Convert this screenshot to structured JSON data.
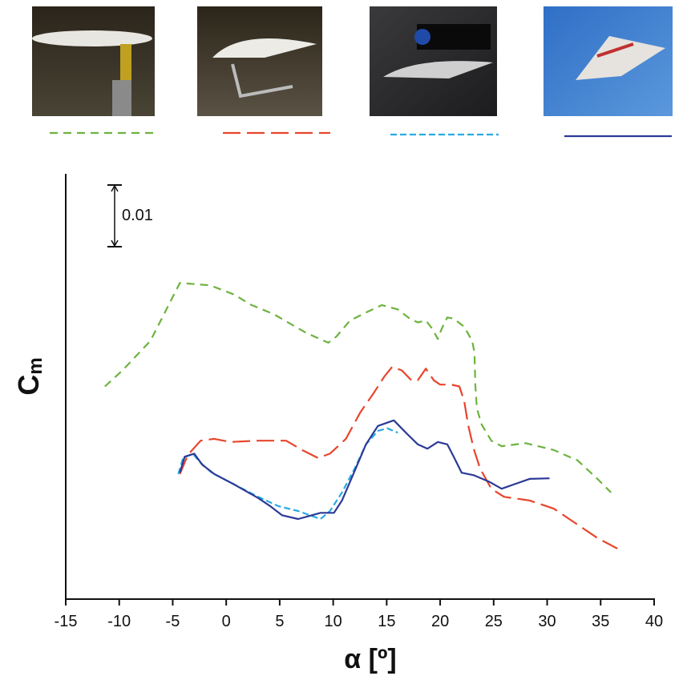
{
  "chart_data": {
    "type": "line",
    "xlabel": "α [º]",
    "ylabel": "C",
    "ylabel_sub": "m",
    "scale_bar": {
      "value": 0.01
    },
    "xlim": [
      -15,
      40
    ],
    "xticks": [
      -15,
      -10,
      -5,
      0,
      5,
      10,
      15,
      20,
      25,
      30,
      35,
      40
    ],
    "ylim": [
      0,
      0.069
    ],
    "series": [
      {
        "color": "#6db33f",
        "dash": "10 7",
        "x": [
          -11.34,
          -9.7,
          -7.09,
          -4.33,
          -1.49,
          0.75,
          2.24,
          4.48,
          7.46,
          9.55,
          10.3,
          11.57,
          13.06,
          14.55,
          16.04,
          17.16,
          17.91,
          18.66,
          19.25,
          19.78,
          20.15,
          20.67,
          21.27,
          22.24,
          22.99,
          23.21,
          23.28,
          23.43,
          23.88,
          24.78,
          25.75,
          27.99,
          30.6,
          32.84,
          34.7,
          35.97
        ],
        "values": [
          0.0345,
          0.0371,
          0.0419,
          0.0513,
          0.0509,
          0.0494,
          0.0478,
          0.0462,
          0.0432,
          0.0416,
          0.0426,
          0.0452,
          0.0465,
          0.0477,
          0.047,
          0.0455,
          0.0449,
          0.0452,
          0.0439,
          0.0422,
          0.0439,
          0.0457,
          0.0455,
          0.0442,
          0.0419,
          0.04,
          0.0348,
          0.0309,
          0.0283,
          0.0257,
          0.0248,
          0.0253,
          0.0242,
          0.0225,
          0.0195,
          0.0173
        ]
      },
      {
        "color": "#e8452c",
        "dash": "22 8",
        "x": [
          -4.33,
          -3.58,
          -2.39,
          -1.12,
          0.37,
          2.99,
          5.6,
          7.09,
          8.58,
          9.7,
          11.19,
          12.54,
          13.81,
          14.78,
          15.52,
          16.42,
          17.31,
          17.91,
          18.66,
          19.4,
          20.0,
          21.04,
          21.79,
          22.24,
          22.61,
          23.13,
          23.73,
          24.78,
          25.97,
          28.36,
          30.6,
          32.84,
          34.7,
          36.57
        ],
        "values": [
          0.0203,
          0.0234,
          0.0257,
          0.026,
          0.0255,
          0.0257,
          0.0257,
          0.0242,
          0.0229,
          0.0236,
          0.026,
          0.0303,
          0.0335,
          0.0361,
          0.0377,
          0.0371,
          0.0355,
          0.0355,
          0.0374,
          0.0355,
          0.0348,
          0.0348,
          0.0345,
          0.0322,
          0.0283,
          0.0244,
          0.0212,
          0.0179,
          0.0166,
          0.016,
          0.0147,
          0.0121,
          0.0099,
          0.0082
        ]
      },
      {
        "color": "#29aae1",
        "dash": "8 4",
        "x": [
          -4.48,
          -4.03,
          -3.13,
          -2.39,
          -1.34,
          0.75,
          2.99,
          4.85,
          6.72,
          8.81,
          9.7,
          10.82,
          12.01,
          13.06,
          14.18,
          15.07,
          16.04
        ],
        "values": [
          0.0203,
          0.0229,
          0.0236,
          0.0221,
          0.0205,
          0.0186,
          0.0166,
          0.0151,
          0.0143,
          0.013,
          0.0143,
          0.0173,
          0.0212,
          0.0251,
          0.0273,
          0.0277,
          0.027
        ]
      },
      {
        "color": "#2b3a97",
        "dash": "none",
        "x": [
          -4.33,
          -3.88,
          -2.99,
          -2.24,
          -1.12,
          0.75,
          2.99,
          4.1,
          5.22,
          6.72,
          8.81,
          10.07,
          10.82,
          11.94,
          13.06,
          14.18,
          15.67,
          16.79,
          17.91,
          18.81,
          19.78,
          20.67,
          21.27,
          22.01,
          23.13,
          24.63,
          25.75,
          26.87,
          28.36,
          30.22
        ],
        "values": [
          0.0205,
          0.0231,
          0.0236,
          0.0218,
          0.0203,
          0.0186,
          0.0164,
          0.0151,
          0.0136,
          0.013,
          0.014,
          0.014,
          0.016,
          0.0205,
          0.0251,
          0.0281,
          0.029,
          0.027,
          0.0251,
          0.0244,
          0.0255,
          0.0251,
          0.0231,
          0.0205,
          0.0201,
          0.019,
          0.0179,
          0.0186,
          0.0195,
          0.0196
        ]
      }
    ]
  }
}
